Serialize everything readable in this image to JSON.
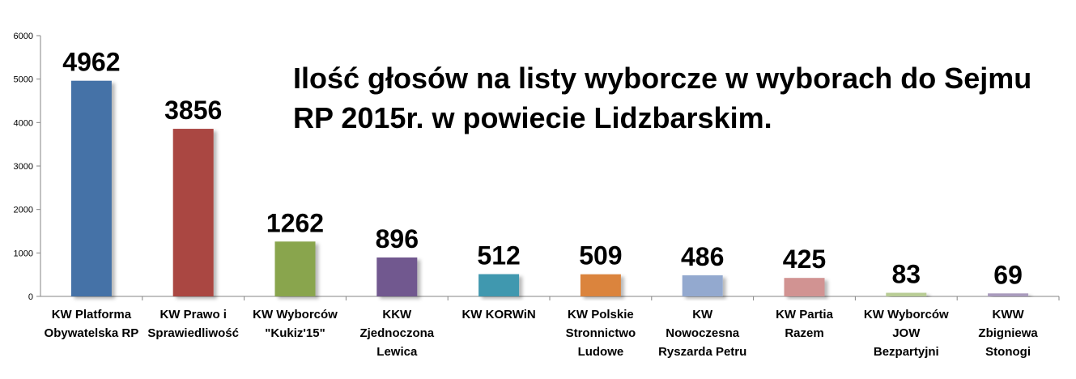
{
  "chart_data": {
    "type": "bar",
    "title_lines": [
      "Ilość głosów na listy wyborcze w wyborach do Sejmu",
      "RP 2015r. w powiecie  Lidzbarskim."
    ],
    "xlabel": "",
    "ylabel": "",
    "ylim": [
      0,
      6000
    ],
    "yticks": [
      "0",
      "1000",
      "2000",
      "3000",
      "4000",
      "5000",
      "6000"
    ],
    "grid": false,
    "legend": "none",
    "categories": [
      [
        "KW Platforma",
        "Obywatelska RP"
      ],
      [
        "KW Prawo i",
        "Sprawiedliwość"
      ],
      [
        "KW Wyborców",
        "\"Kukiz'15\""
      ],
      [
        "KKW",
        "Zjednoczona",
        "Lewica"
      ],
      [
        "KW KORWiN"
      ],
      [
        "KW Polskie",
        "Stronnictwo",
        "Ludowe"
      ],
      [
        "KW",
        "Nowoczesna",
        "Ryszarda Petru"
      ],
      [
        "KW Partia",
        "Razem"
      ],
      [
        "KW Wyborców",
        "JOW",
        "Bezpartyjni"
      ],
      [
        "KWW",
        "Zbigniewa",
        "Stonogi"
      ]
    ],
    "values": [
      4962,
      3856,
      1262,
      896,
      512,
      509,
      486,
      425,
      83,
      69
    ],
    "data_labels": [
      "4962",
      "3856",
      "1262",
      "896",
      "512",
      "509",
      "486",
      "425",
      "83",
      "69"
    ],
    "colors": [
      "#4572A7",
      "#AA4643",
      "#89A54E",
      "#71588F",
      "#4198AF",
      "#DB843D",
      "#93A9CF",
      "#D19392",
      "#B9CD96",
      "#A99BBD"
    ]
  }
}
